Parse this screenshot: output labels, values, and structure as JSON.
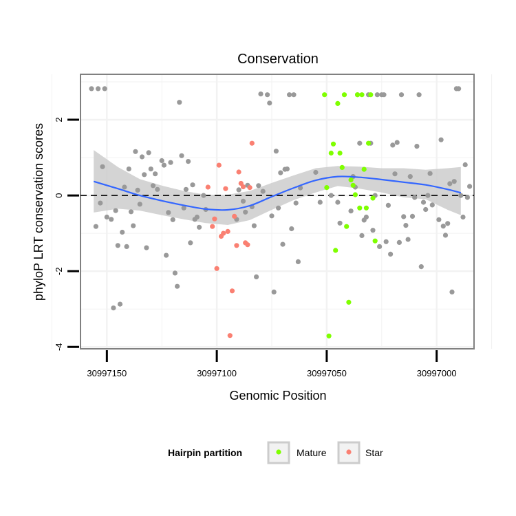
{
  "chart_data": {
    "type": "scatter",
    "title": "Conservation",
    "xlabel": "Genomic Position",
    "ylabel": "phyloP LRT conservation scores",
    "x_reversed": true,
    "xlim": [
      30997162,
      30996983
    ],
    "ylim": [
      -4.05,
      3.2
    ],
    "x_ticks": [
      30997150,
      30997100,
      30997050,
      30997000
    ],
    "x_tick_labels": [
      "30997150",
      "30997100",
      "30997050",
      "30997000"
    ],
    "y_ticks": [
      -4,
      -2,
      0,
      2
    ],
    "y_tick_labels": [
      "-4",
      "-2",
      "0",
      "2"
    ],
    "reference_line": {
      "y": 0,
      "style": "dashed"
    },
    "colors": {
      "Other": "#999999",
      "Mature": "#7fff00",
      "Star": "#fa8072",
      "smooth_line": "#3366ff",
      "ribbon": "#cccccc",
      "panel_border": "#808080",
      "grid": "#f2f2f2"
    },
    "legend": {
      "title": "Hairpin partition",
      "position": "bottom",
      "entries": [
        {
          "label": "Mature",
          "group": "Mature"
        },
        {
          "label": "Star",
          "group": "Star"
        }
      ]
    },
    "series": [
      {
        "name": "Other",
        "points": [
          [
            30997157,
            2.82
          ],
          [
            30997154,
            2.82
          ],
          [
            30997151,
            2.82
          ],
          [
            30997155,
            -0.82
          ],
          [
            30997153,
            -0.2
          ],
          [
            30997152,
            0.76
          ],
          [
            30997150,
            -0.57
          ],
          [
            30997148,
            -0.63
          ],
          [
            30997147,
            -2.97
          ],
          [
            30997146,
            -0.4
          ],
          [
            30997145,
            -1.32
          ],
          [
            30997144,
            -2.87
          ],
          [
            30997143,
            -0.97
          ],
          [
            30997142,
            0.22
          ],
          [
            30997141,
            -1.35
          ],
          [
            30997140,
            0.7
          ],
          [
            30997139,
            -0.43
          ],
          [
            30997138,
            -0.8
          ],
          [
            30997137,
            1.16
          ],
          [
            30997136,
            0.14
          ],
          [
            30997135,
            -0.23
          ],
          [
            30997134,
            1.02
          ],
          [
            30997133,
            0.55
          ],
          [
            30997132,
            -1.38
          ],
          [
            30997131,
            1.13
          ],
          [
            30997130,
            0.7
          ],
          [
            30997129,
            0.26
          ],
          [
            30997128,
            0.57
          ],
          [
            30997127,
            0.16
          ],
          [
            30997125,
            0.92
          ],
          [
            30997124,
            0.8
          ],
          [
            30997123,
            -1.58
          ],
          [
            30997122,
            -0.45
          ],
          [
            30997121,
            0.87
          ],
          [
            30997120,
            -0.64
          ],
          [
            30997119,
            -2.05
          ],
          [
            30997118,
            -2.4
          ],
          [
            30997117,
            2.46
          ],
          [
            30997116,
            1.05
          ],
          [
            30997115,
            -0.33
          ],
          [
            30997114,
            0.16
          ],
          [
            30997113,
            0.9
          ],
          [
            30997112,
            -1.25
          ],
          [
            30997111,
            0.28
          ],
          [
            30997110,
            -0.63
          ],
          [
            30997109,
            -0.57
          ],
          [
            30997108,
            -0.84
          ],
          [
            30997106,
            0.0
          ],
          [
            30997105,
            -0.37
          ],
          [
            30997091,
            -0.63
          ],
          [
            30997090,
            0.15
          ],
          [
            30997088,
            -0.15
          ],
          [
            30997087,
            -0.44
          ],
          [
            30997086,
            0.27
          ],
          [
            30997084,
            -0.3
          ],
          [
            30997083,
            -0.8
          ],
          [
            30997082,
            -2.15
          ],
          [
            30997081,
            0.26
          ],
          [
            30997080,
            2.68
          ],
          [
            30997079,
            0.11
          ],
          [
            30997077,
            2.66
          ],
          [
            30997076,
            2.44
          ],
          [
            30997075,
            -0.54
          ],
          [
            30997074,
            -2.55
          ],
          [
            30997073,
            1.17
          ],
          [
            30997072,
            -0.33
          ],
          [
            30997071,
            0.6
          ],
          [
            30997070,
            -1.29
          ],
          [
            30997069,
            0.69
          ],
          [
            30997068,
            0.7
          ],
          [
            30997067,
            2.66
          ],
          [
            30997066,
            -0.88
          ],
          [
            30997065,
            2.66
          ],
          [
            30997064,
            -0.2
          ],
          [
            30997063,
            -1.75
          ],
          [
            30997062,
            0.2
          ],
          [
            30997055,
            0.61
          ],
          [
            30997053,
            -0.18
          ],
          [
            30997048,
            0.0
          ],
          [
            30997045,
            -0.18
          ],
          [
            30997044,
            -0.73
          ],
          [
            30997039,
            -0.41
          ],
          [
            30997038,
            0.5
          ],
          [
            30997037,
            0.22
          ],
          [
            30997036,
            2.66
          ],
          [
            30997035,
            1.38
          ],
          [
            30997034,
            -1.06
          ],
          [
            30997033,
            -0.65
          ],
          [
            30997032,
            -0.57
          ],
          [
            30997031,
            2.66
          ],
          [
            30997030,
            1.38
          ],
          [
            30997029,
            -0.92
          ],
          [
            30997028,
            0.0
          ],
          [
            30997027,
            2.66
          ],
          [
            30997026,
            -1.35
          ],
          [
            30997025,
            2.66
          ],
          [
            30997024,
            2.66
          ],
          [
            30997023,
            -1.22
          ],
          [
            30997022,
            -0.26
          ],
          [
            30997021,
            -1.55
          ],
          [
            30997020,
            1.33
          ],
          [
            30997019,
            0.57
          ],
          [
            30997018,
            1.4
          ],
          [
            30997017,
            -1.24
          ],
          [
            30997016,
            2.66
          ],
          [
            30997015,
            -0.56
          ],
          [
            30997014,
            -0.79
          ],
          [
            30997013,
            -1.16
          ],
          [
            30997012,
            0.5
          ],
          [
            30997011,
            -0.55
          ],
          [
            30997010,
            -0.05
          ],
          [
            30997009,
            1.3
          ],
          [
            30997008,
            2.66
          ],
          [
            30997007,
            -1.88
          ],
          [
            30997006,
            -0.18
          ],
          [
            30997005,
            -0.37
          ],
          [
            30997004,
            0.0
          ],
          [
            30997003,
            0.58
          ],
          [
            30997002,
            -0.25
          ],
          [
            30996999,
            -0.64
          ],
          [
            30996998,
            1.47
          ],
          [
            30996997,
            -0.81
          ],
          [
            30996996,
            -1.05
          ],
          [
            30996995,
            -0.74
          ],
          [
            30996994,
            0.31
          ],
          [
            30996993,
            -2.55
          ],
          [
            30996992,
            0.37
          ],
          [
            30996991,
            2.82
          ],
          [
            30996990,
            2.82
          ],
          [
            30996989,
            0.0
          ],
          [
            30996988,
            -0.57
          ],
          [
            30996987,
            0.81
          ],
          [
            30996986,
            -0.05
          ],
          [
            30996985,
            0.24
          ]
        ]
      },
      {
        "name": "Mature",
        "points": [
          [
            30997051,
            2.66
          ],
          [
            30997050,
            0.21
          ],
          [
            30997049,
            -3.71
          ],
          [
            30997048,
            1.12
          ],
          [
            30997047,
            1.36
          ],
          [
            30997046,
            -1.45
          ],
          [
            30997045,
            2.43
          ],
          [
            30997044,
            1.12
          ],
          [
            30997043,
            0.74
          ],
          [
            30997042,
            2.66
          ],
          [
            30997041,
            -0.82
          ],
          [
            30997040,
            -2.82
          ],
          [
            30997039,
            0.41
          ],
          [
            30997038,
            0.27
          ],
          [
            30997037,
            0.02
          ],
          [
            30997036,
            2.66
          ],
          [
            30997035,
            -0.33
          ],
          [
            30997034,
            2.66
          ],
          [
            30997033,
            0.69
          ],
          [
            30997032,
            -0.33
          ],
          [
            30997031,
            1.38
          ],
          [
            30997030,
            2.66
          ],
          [
            30997029,
            -0.07
          ],
          [
            30997028,
            -1.2
          ]
        ]
      },
      {
        "name": "Star",
        "points": [
          [
            30997104,
            0.22
          ],
          [
            30997102,
            -0.82
          ],
          [
            30997101,
            -0.62
          ],
          [
            30997100,
            -1.93
          ],
          [
            30997099,
            0.8
          ],
          [
            30997098,
            -1.08
          ],
          [
            30997097,
            -1.0
          ],
          [
            30997096,
            0.18
          ],
          [
            30997095,
            -0.95
          ],
          [
            30997094,
            -3.7
          ],
          [
            30997093,
            -2.52
          ],
          [
            30997092,
            -0.55
          ],
          [
            30997091,
            -1.32
          ],
          [
            30997090,
            0.62
          ],
          [
            30997089,
            0.32
          ],
          [
            30997088,
            0.23
          ],
          [
            30997087,
            -1.25
          ],
          [
            30997086,
            -1.3
          ],
          [
            30997085,
            0.21
          ],
          [
            30997084,
            1.38
          ]
        ]
      }
    ],
    "smooth": {
      "method": "loess",
      "x": [
        30997156,
        30997145,
        30997135,
        30997125,
        30997115,
        30997105,
        30997095,
        30997085,
        30997075,
        30997065,
        30997055,
        30997045,
        30997035,
        30997025,
        30997015,
        30997005,
        30996995,
        30996989
      ],
      "y": [
        0.37,
        0.18,
        0.0,
        -0.14,
        -0.26,
        -0.36,
        -0.38,
        -0.27,
        -0.03,
        0.2,
        0.4,
        0.5,
        0.48,
        0.42,
        0.35,
        0.28,
        0.16,
        0.07
      ],
      "lower": [
        -0.45,
        -0.35,
        -0.4,
        -0.52,
        -0.63,
        -0.73,
        -0.78,
        -0.65,
        -0.38,
        -0.12,
        0.08,
        0.25,
        0.18,
        0.08,
        -0.05,
        -0.1,
        -0.38,
        -0.52
      ],
      "upper": [
        1.2,
        0.75,
        0.43,
        0.26,
        0.12,
        0.02,
        0.02,
        0.12,
        0.33,
        0.53,
        0.72,
        0.78,
        0.76,
        0.72,
        0.72,
        0.68,
        0.72,
        0.75
      ]
    }
  }
}
